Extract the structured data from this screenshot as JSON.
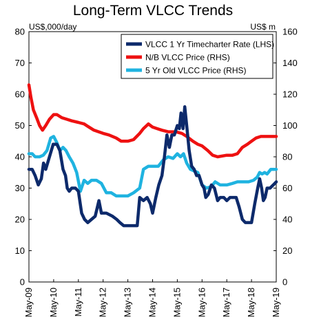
{
  "chart_data": {
    "type": "line",
    "title": "Long-Term VLCC Trends",
    "left_axis_unit": "US$,000/day",
    "right_axis_unit": "US$ m",
    "ylim_left": [
      0,
      80
    ],
    "ylim_right": [
      0,
      160
    ],
    "yticks_left": [
      "0",
      "10",
      "20",
      "30",
      "40",
      "50",
      "60",
      "70",
      "80"
    ],
    "yticks_right": [
      "0",
      "20",
      "40",
      "60",
      "80",
      "100",
      "120",
      "140",
      "160"
    ],
    "x_range": [
      2009.37,
      2019.37
    ],
    "x_ticks": [
      {
        "label": "May-09",
        "x": 2009.37
      },
      {
        "label": "May-10",
        "x": 2010.37
      },
      {
        "label": "May-11",
        "x": 2011.37
      },
      {
        "label": "May-12",
        "x": 2012.37
      },
      {
        "label": "May-13",
        "x": 2013.37
      },
      {
        "label": "May-14",
        "x": 2014.37
      },
      {
        "label": "May-15",
        "x": 2015.37
      },
      {
        "label": "May-16",
        "x": 2016.37
      },
      {
        "label": "May-17",
        "x": 2017.37
      },
      {
        "label": "May-18",
        "x": 2018.37
      },
      {
        "label": "May-19",
        "x": 2019.37
      }
    ],
    "grid": false,
    "legend_position": "top-right",
    "series": [
      {
        "name": "VLCC 1 Yr Timecharter Rate (LHS)",
        "axis": "left",
        "color": "#0d2a6b",
        "points": [
          [
            2009.37,
            36
          ],
          [
            2009.5,
            36
          ],
          [
            2009.62,
            34
          ],
          [
            2009.75,
            31
          ],
          [
            2009.87,
            33
          ],
          [
            2009.96,
            38
          ],
          [
            2010.05,
            36
          ],
          [
            2010.2,
            40
          ],
          [
            2010.35,
            44
          ],
          [
            2010.5,
            44
          ],
          [
            2010.62,
            42
          ],
          [
            2010.75,
            36
          ],
          [
            2010.85,
            34
          ],
          [
            2010.92,
            30
          ],
          [
            2011.0,
            29
          ],
          [
            2011.1,
            30
          ],
          [
            2011.25,
            30
          ],
          [
            2011.37,
            29
          ],
          [
            2011.5,
            22
          ],
          [
            2011.62,
            20
          ],
          [
            2011.75,
            19
          ],
          [
            2011.9,
            20
          ],
          [
            2012.05,
            21
          ],
          [
            2012.2,
            26
          ],
          [
            2012.3,
            22
          ],
          [
            2012.5,
            22
          ],
          [
            2012.75,
            21
          ],
          [
            2012.92,
            20
          ],
          [
            2013.05,
            19
          ],
          [
            2013.2,
            18
          ],
          [
            2013.5,
            18
          ],
          [
            2013.75,
            18
          ],
          [
            2013.85,
            27
          ],
          [
            2014.0,
            26
          ],
          [
            2014.15,
            27
          ],
          [
            2014.28,
            25
          ],
          [
            2014.37,
            22
          ],
          [
            2014.5,
            27
          ],
          [
            2014.62,
            31
          ],
          [
            2014.75,
            34
          ],
          [
            2014.85,
            40
          ],
          [
            2014.95,
            47
          ],
          [
            2015.05,
            43
          ],
          [
            2015.15,
            47
          ],
          [
            2015.25,
            47
          ],
          [
            2015.37,
            50
          ],
          [
            2015.45,
            49
          ],
          [
            2015.52,
            54
          ],
          [
            2015.6,
            49
          ],
          [
            2015.67,
            56
          ],
          [
            2015.75,
            50
          ],
          [
            2015.85,
            42
          ],
          [
            2015.95,
            37
          ],
          [
            2016.05,
            36
          ],
          [
            2016.15,
            34
          ],
          [
            2016.25,
            34
          ],
          [
            2016.37,
            31
          ],
          [
            2016.45,
            30
          ],
          [
            2016.52,
            27
          ],
          [
            2016.62,
            28
          ],
          [
            2016.75,
            31
          ],
          [
            2016.87,
            30
          ],
          [
            2017.0,
            26
          ],
          [
            2017.1,
            27
          ],
          [
            2017.25,
            27
          ],
          [
            2017.37,
            26
          ],
          [
            2017.5,
            27
          ],
          [
            2017.62,
            27
          ],
          [
            2017.75,
            27
          ],
          [
            2017.87,
            24
          ],
          [
            2018.0,
            20
          ],
          [
            2018.12,
            19
          ],
          [
            2018.25,
            19
          ],
          [
            2018.37,
            19
          ],
          [
            2018.5,
            25
          ],
          [
            2018.62,
            30
          ],
          [
            2018.7,
            33
          ],
          [
            2018.78,
            30
          ],
          [
            2018.85,
            26
          ],
          [
            2018.92,
            27
          ],
          [
            2019.0,
            30
          ],
          [
            2019.12,
            30
          ],
          [
            2019.25,
            31
          ],
          [
            2019.37,
            32
          ]
        ]
      },
      {
        "name": "N/B VLCC Price (RHS)",
        "axis": "right",
        "color": "#ee1111",
        "points": [
          [
            2009.37,
            126
          ],
          [
            2009.45,
            118
          ],
          [
            2009.55,
            110
          ],
          [
            2009.68,
            105
          ],
          [
            2009.8,
            100
          ],
          [
            2009.92,
            97
          ],
          [
            2010.05,
            100
          ],
          [
            2010.2,
            104
          ],
          [
            2010.37,
            107
          ],
          [
            2010.5,
            107
          ],
          [
            2010.7,
            105
          ],
          [
            2010.9,
            104
          ],
          [
            2011.1,
            103
          ],
          [
            2011.37,
            102
          ],
          [
            2011.6,
            101
          ],
          [
            2011.8,
            99
          ],
          [
            2012.0,
            97
          ],
          [
            2012.37,
            95
          ],
          [
            2012.6,
            94
          ],
          [
            2012.9,
            92
          ],
          [
            2013.1,
            90
          ],
          [
            2013.37,
            90
          ],
          [
            2013.6,
            91
          ],
          [
            2013.85,
            95
          ],
          [
            2014.0,
            98
          ],
          [
            2014.2,
            101
          ],
          [
            2014.37,
            99
          ],
          [
            2014.55,
            98
          ],
          [
            2014.75,
            97
          ],
          [
            2015.0,
            96
          ],
          [
            2015.3,
            96
          ],
          [
            2015.55,
            95
          ],
          [
            2015.75,
            93
          ],
          [
            2016.0,
            90
          ],
          [
            2016.2,
            88
          ],
          [
            2016.37,
            87
          ],
          [
            2016.6,
            84
          ],
          [
            2016.8,
            81
          ],
          [
            2017.0,
            80
          ],
          [
            2017.37,
            81
          ],
          [
            2017.6,
            81
          ],
          [
            2017.8,
            82
          ],
          [
            2018.0,
            86
          ],
          [
            2018.2,
            88
          ],
          [
            2018.37,
            90
          ],
          [
            2018.55,
            92
          ],
          [
            2018.75,
            93
          ],
          [
            2019.0,
            93
          ],
          [
            2019.37,
            93
          ]
        ]
      },
      {
        "name": "5 Yr Old VLCC Price (RHS)",
        "axis": "right",
        "color": "#1fb3e0",
        "points": [
          [
            2009.37,
            82
          ],
          [
            2009.5,
            82
          ],
          [
            2009.62,
            80
          ],
          [
            2009.8,
            80
          ],
          [
            2009.95,
            81
          ],
          [
            2010.1,
            84
          ],
          [
            2010.25,
            92
          ],
          [
            2010.37,
            93
          ],
          [
            2010.5,
            89
          ],
          [
            2010.62,
            84
          ],
          [
            2010.75,
            86
          ],
          [
            2010.87,
            84
          ],
          [
            2011.0,
            80
          ],
          [
            2011.15,
            76
          ],
          [
            2011.3,
            70
          ],
          [
            2011.45,
            58
          ],
          [
            2011.6,
            65
          ],
          [
            2011.75,
            63
          ],
          [
            2011.9,
            65
          ],
          [
            2012.1,
            65
          ],
          [
            2012.3,
            63
          ],
          [
            2012.5,
            57
          ],
          [
            2012.7,
            57
          ],
          [
            2012.9,
            55
          ],
          [
            2013.1,
            55
          ],
          [
            2013.37,
            55
          ],
          [
            2013.6,
            57
          ],
          [
            2013.85,
            60
          ],
          [
            2014.0,
            72
          ],
          [
            2014.2,
            74
          ],
          [
            2014.37,
            74
          ],
          [
            2014.6,
            74
          ],
          [
            2014.8,
            78
          ],
          [
            2015.0,
            80
          ],
          [
            2015.2,
            79
          ],
          [
            2015.37,
            82
          ],
          [
            2015.5,
            80
          ],
          [
            2015.62,
            82
          ],
          [
            2015.75,
            76
          ],
          [
            2015.9,
            72
          ],
          [
            2016.05,
            71
          ],
          [
            2016.2,
            70
          ],
          [
            2016.37,
            62
          ],
          [
            2016.55,
            60
          ],
          [
            2016.75,
            61
          ],
          [
            2016.9,
            64
          ],
          [
            2017.1,
            62
          ],
          [
            2017.37,
            62
          ],
          [
            2017.6,
            63
          ],
          [
            2017.8,
            64
          ],
          [
            2018.0,
            64
          ],
          [
            2018.25,
            64
          ],
          [
            2018.45,
            65
          ],
          [
            2018.6,
            67
          ],
          [
            2018.7,
            70
          ],
          [
            2018.8,
            69
          ],
          [
            2018.9,
            70
          ],
          [
            2019.0,
            69
          ],
          [
            2019.15,
            72
          ],
          [
            2019.37,
            72
          ]
        ]
      }
    ]
  }
}
